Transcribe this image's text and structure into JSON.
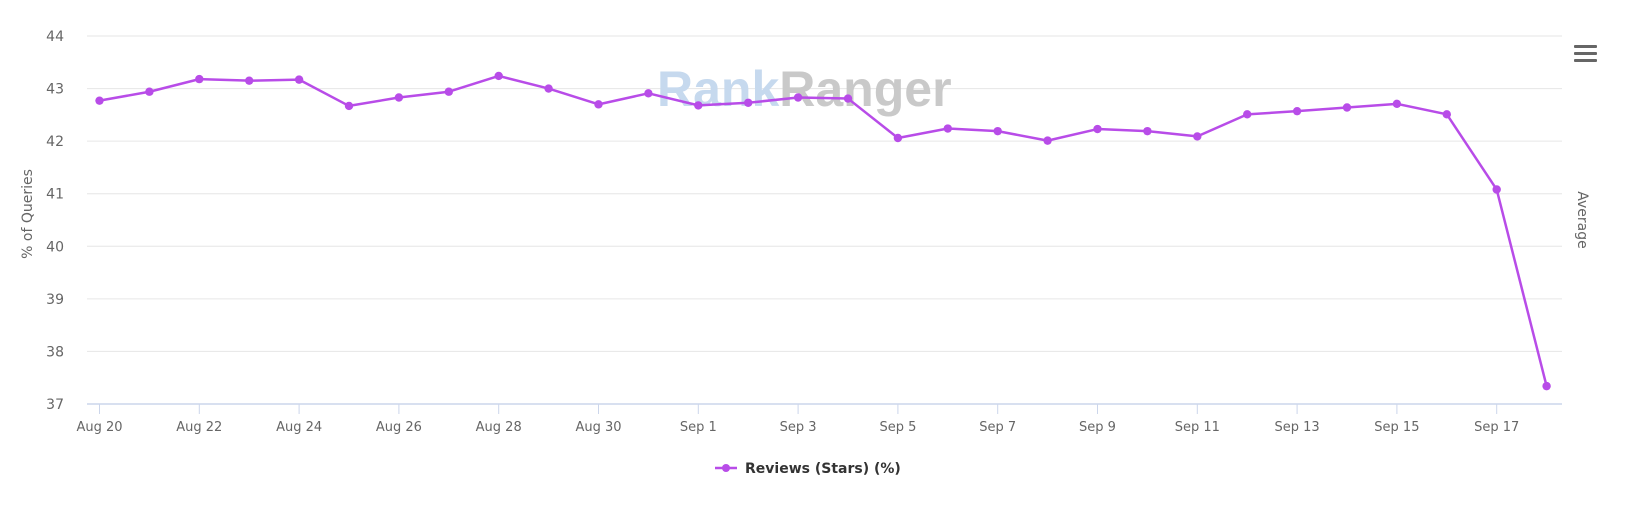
{
  "chart_data": {
    "type": "line",
    "title": "",
    "xlabel": "",
    "ylabel": "% of Queries",
    "ylabel_right": "Average",
    "ylim": [
      37,
      44
    ],
    "yticks": [
      37,
      38,
      39,
      40,
      41,
      42,
      43,
      44
    ],
    "grid": true,
    "legend_position": "bottom-center",
    "x": [
      "Aug 20",
      "Aug 21",
      "Aug 22",
      "Aug 23",
      "Aug 24",
      "Aug 25",
      "Aug 26",
      "Aug 27",
      "Aug 28",
      "Aug 29",
      "Aug 30",
      "Aug 31",
      "Sep 1",
      "Sep 2",
      "Sep 3",
      "Sep 4",
      "Sep 5",
      "Sep 6",
      "Sep 7",
      "Sep 8",
      "Sep 9",
      "Sep 10",
      "Sep 11",
      "Sep 12",
      "Sep 13",
      "Sep 14",
      "Sep 15",
      "Sep 16",
      "Sep 17",
      "Sep 18"
    ],
    "xtick_labels": [
      "Aug 20",
      "Aug 22",
      "Aug 24",
      "Aug 26",
      "Aug 28",
      "Aug 30",
      "Sep 1",
      "Sep 3",
      "Sep 5",
      "Sep 7",
      "Sep 9",
      "Sep 11",
      "Sep 13",
      "Sep 15",
      "Sep 17"
    ],
    "series": [
      {
        "name": "Reviews (Stars) (%)",
        "color": "#b84ce8",
        "values": [
          42.77,
          42.94,
          43.18,
          43.15,
          43.17,
          42.67,
          42.83,
          42.94,
          43.24,
          43.0,
          42.7,
          42.91,
          42.68,
          42.73,
          42.83,
          42.81,
          42.06,
          42.24,
          42.19,
          42.01,
          42.23,
          42.19,
          42.09,
          42.51,
          42.57,
          42.64,
          42.71,
          42.51,
          41.08,
          37.34
        ]
      }
    ]
  },
  "watermark": {
    "part1": "Rank",
    "part2": "Ranger",
    "color1": "#c6d9ee",
    "color2": "#c9c9c9"
  },
  "menu": {
    "icon": "hamburger-menu-icon"
  },
  "legend": {
    "label": "Reviews (Stars) (%)"
  },
  "colors": {
    "series": "#b84ce8",
    "grid": "#e6e6e6",
    "axis": "#ccd6eb",
    "text": "#666666"
  }
}
